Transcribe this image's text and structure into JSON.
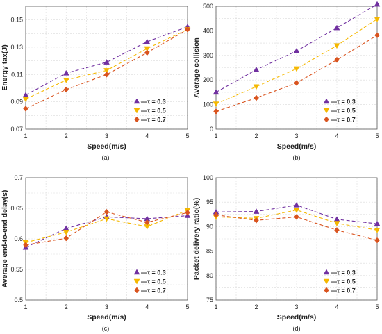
{
  "legend_labels": [
    "—τ = 0.3",
    "—τ = 0.5",
    "—τ = 0.7"
  ],
  "colors": [
    "#7030a0",
    "#f5b800",
    "#d9531e"
  ],
  "markers": [
    "triangle-up",
    "triangle-down",
    "diamond"
  ],
  "chart_data": [
    {
      "type": "line",
      "caption": "(a)",
      "xlabel": "Speed(m/s)",
      "ylabel": "Energy tax(J)",
      "x": [
        1,
        2,
        3,
        4,
        5
      ],
      "xticks": [
        "1",
        "2",
        "3",
        "4",
        "5"
      ],
      "ylim": [
        0.07,
        0.16
      ],
      "yticks": [
        0.07,
        0.09,
        0.11,
        0.13,
        0.15
      ],
      "ytick_labels": [
        "0.07",
        "0.09",
        "0.11",
        "0.13",
        "0.15"
      ],
      "grid": true,
      "legend_position": "bottom-right",
      "series": [
        {
          "name": "τ = 0.3",
          "values": [
            0.095,
            0.111,
            0.119,
            0.134,
            0.145
          ]
        },
        {
          "name": "τ = 0.5",
          "values": [
            0.092,
            0.106,
            0.113,
            0.129,
            0.143
          ]
        },
        {
          "name": "τ = 0.7",
          "values": [
            0.085,
            0.099,
            0.11,
            0.126,
            0.143
          ]
        }
      ]
    },
    {
      "type": "line",
      "caption": "(b)",
      "xlabel": "Speed(m/s)",
      "ylabel": "Average collision",
      "x": [
        1,
        2,
        3,
        4,
        5
      ],
      "xticks": [
        "1",
        "2",
        "3",
        "4",
        "5"
      ],
      "ylim": [
        0,
        500
      ],
      "yticks": [
        0,
        100,
        200,
        300,
        400,
        500
      ],
      "ytick_labels": [
        "0",
        "100",
        "200",
        "300",
        "400",
        "500"
      ],
      "grid": true,
      "legend_position": "bottom-right",
      "series": [
        {
          "name": "τ = 0.3",
          "values": [
            150,
            242,
            318,
            412,
            508
          ]
        },
        {
          "name": "τ = 0.5",
          "values": [
            103,
            173,
            246,
            340,
            448
          ]
        },
        {
          "name": "τ = 0.7",
          "values": [
            72,
            127,
            188,
            282,
            382
          ]
        }
      ]
    },
    {
      "type": "line",
      "caption": "(c)",
      "xlabel": "Speed(m/s)",
      "ylabel": "Average end-to-end delay(s)",
      "x": [
        1,
        2,
        3,
        4,
        5
      ],
      "xticks": [
        "1",
        "2",
        "3",
        "4",
        "5"
      ],
      "ylim": [
        0.5,
        0.7
      ],
      "yticks": [
        0.5,
        0.55,
        0.6,
        0.65,
        0.7
      ],
      "ytick_labels": [
        "0.5",
        "0.55",
        "0.6",
        "0.65",
        "0.7"
      ],
      "grid": true,
      "legend_position": "bottom-right",
      "series": [
        {
          "name": "τ = 0.3",
          "values": [
            0.586,
            0.617,
            0.636,
            0.633,
            0.638
          ]
        },
        {
          "name": "τ = 0.5",
          "values": [
            0.594,
            0.611,
            0.633,
            0.62,
            0.647
          ]
        },
        {
          "name": "τ = 0.7",
          "values": [
            0.59,
            0.601,
            0.644,
            0.627,
            0.643
          ]
        }
      ]
    },
    {
      "type": "line",
      "caption": "(d)",
      "xlabel": "Speed(m/s)",
      "ylabel": "Packet delivery ratio(%)",
      "x": [
        1,
        2,
        3,
        4,
        5
      ],
      "xticks": [
        "1",
        "2",
        "3",
        "4",
        "5"
      ],
      "ylim": [
        75,
        100
      ],
      "yticks": [
        75,
        80,
        85,
        90,
        95,
        100
      ],
      "ytick_labels": [
        "75",
        "80",
        "85",
        "90",
        "95",
        "100"
      ],
      "grid": true,
      "legend_position": "bottom-right",
      "series": [
        {
          "name": "τ = 0.3",
          "values": [
            93.0,
            93.1,
            94.4,
            91.5,
            90.6
          ]
        },
        {
          "name": "τ = 0.5",
          "values": [
            92.0,
            91.7,
            93.4,
            90.7,
            89.3
          ]
        },
        {
          "name": "τ = 0.7",
          "values": [
            92.4,
            91.3,
            92.0,
            89.3,
            87.2
          ]
        }
      ]
    }
  ]
}
